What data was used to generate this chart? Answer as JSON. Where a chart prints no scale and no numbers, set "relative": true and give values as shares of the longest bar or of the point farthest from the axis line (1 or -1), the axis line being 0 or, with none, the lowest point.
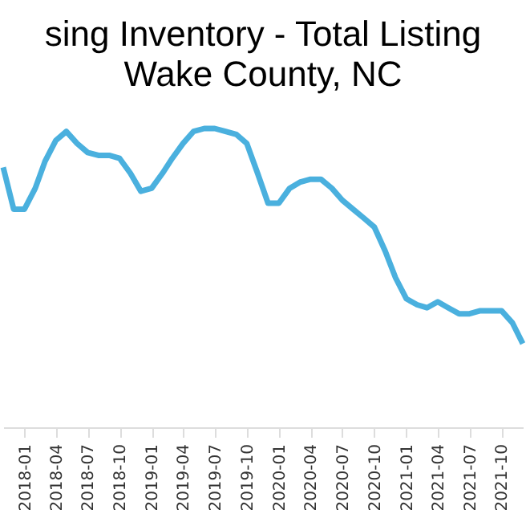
{
  "chart_data": {
    "type": "line",
    "title": "sing Inventory - Total Listing",
    "subtitle": "Wake County, NC",
    "relative": true,
    "x": [
      "2017-11",
      "2017-12",
      "2018-01",
      "2018-02",
      "2018-03",
      "2018-04",
      "2018-05",
      "2018-06",
      "2018-07",
      "2018-08",
      "2018-09",
      "2018-10",
      "2018-11",
      "2018-12",
      "2019-01",
      "2019-02",
      "2019-03",
      "2019-04",
      "2019-05",
      "2019-06",
      "2019-07",
      "2019-08",
      "2019-09",
      "2019-10",
      "2019-11",
      "2019-12",
      "2020-01",
      "2020-02",
      "2020-03",
      "2020-04",
      "2020-05",
      "2020-06",
      "2020-07",
      "2020-08",
      "2020-09",
      "2020-10",
      "2020-11",
      "2020-12",
      "2021-01",
      "2021-02",
      "2021-03",
      "2021-04",
      "2021-05",
      "2021-06",
      "2021-07",
      "2021-08",
      "2021-09",
      "2021-10",
      "2021-11",
      "2021-12"
    ],
    "xlim": [
      "2017-11",
      "2021-12"
    ],
    "xticks": [
      "2018-01",
      "2018-04",
      "2018-07",
      "2018-10",
      "2019-01",
      "2019-04",
      "2019-07",
      "2019-10",
      "2020-01",
      "2020-04",
      "2020-07",
      "2020-10",
      "2021-01",
      "2021-04",
      "2021-07",
      "2021-10"
    ],
    "series": [
      {
        "color": "#4ab0de",
        "values": [
          0.87,
          0.73,
          0.73,
          0.8,
          0.89,
          0.96,
          0.99,
          0.95,
          0.92,
          0.91,
          0.91,
          0.9,
          0.85,
          0.79,
          0.8,
          0.85,
          0.9,
          0.95,
          0.99,
          1.0,
          1.0,
          0.99,
          0.98,
          0.95,
          0.85,
          0.75,
          0.75,
          0.8,
          0.82,
          0.83,
          0.83,
          0.8,
          0.76,
          0.73,
          0.7,
          0.67,
          0.59,
          0.5,
          0.43,
          0.41,
          0.4,
          0.42,
          0.4,
          0.38,
          0.38,
          0.39,
          0.39,
          0.39,
          0.35,
          0.28
        ]
      }
    ],
    "grid": false,
    "line_style": "solid",
    "marker": "none"
  }
}
